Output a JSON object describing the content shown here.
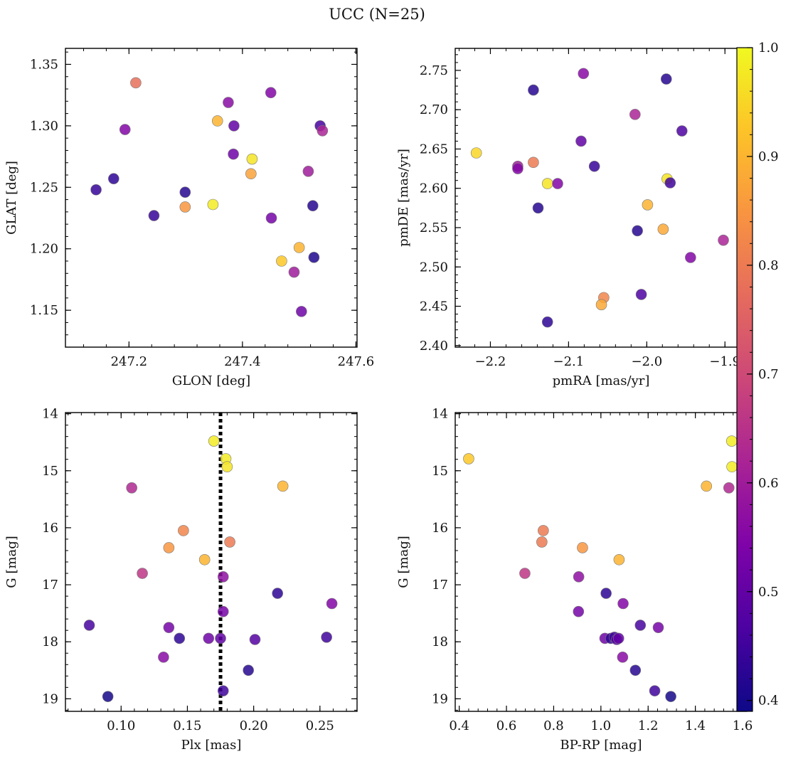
{
  "suptitle": "UCC (N=25)",
  "colorbar": {
    "cmap": "plasma",
    "vmin": 0.39,
    "vmax": 1.0,
    "ticks": [
      0.4,
      0.5,
      0.6,
      0.7,
      0.8,
      0.9,
      1.0
    ],
    "tick_labels": [
      "0.4",
      "0.5",
      "0.6",
      "0.7",
      "0.8",
      "0.9",
      "1.0"
    ]
  },
  "chart_data": [
    {
      "type": "scatter",
      "title": "",
      "xlabel": "GLON [deg]",
      "ylabel": "GLAT [deg]",
      "xlim": [
        247.088,
        247.602
      ],
      "ylim": [
        1.12,
        1.363
      ],
      "y_inverted": false,
      "xticks": [
        247.2,
        247.4,
        247.6
      ],
      "xtick_labels": [
        "247.2",
        "247.4",
        "247.6"
      ],
      "yticks": [
        1.15,
        1.2,
        1.25,
        1.3,
        1.35
      ],
      "ytick_labels": [
        "1.15",
        "1.20",
        "1.25",
        "1.30",
        "1.35"
      ],
      "points": [
        {
          "x": 247.212,
          "y": 1.335,
          "c": 0.78
        },
        {
          "x": 247.375,
          "y": 1.319,
          "c": 0.56
        },
        {
          "x": 247.45,
          "y": 1.327,
          "c": 0.55
        },
        {
          "x": 247.193,
          "y": 1.297,
          "c": 0.55
        },
        {
          "x": 247.356,
          "y": 1.304,
          "c": 0.9
        },
        {
          "x": 247.385,
          "y": 1.3,
          "c": 0.5
        },
        {
          "x": 247.537,
          "y": 1.3,
          "c": 0.46
        },
        {
          "x": 247.541,
          "y": 1.296,
          "c": 0.62
        },
        {
          "x": 247.384,
          "y": 1.277,
          "c": 0.52
        },
        {
          "x": 247.417,
          "y": 1.273,
          "c": 0.97
        },
        {
          "x": 247.415,
          "y": 1.261,
          "c": 0.87
        },
        {
          "x": 247.516,
          "y": 1.263,
          "c": 0.6
        },
        {
          "x": 247.173,
          "y": 1.257,
          "c": 0.43
        },
        {
          "x": 247.142,
          "y": 1.248,
          "c": 0.44
        },
        {
          "x": 247.299,
          "y": 1.246,
          "c": 0.42
        },
        {
          "x": 247.348,
          "y": 1.236,
          "c": 0.98
        },
        {
          "x": 247.299,
          "y": 1.234,
          "c": 0.85
        },
        {
          "x": 247.244,
          "y": 1.227,
          "c": 0.44
        },
        {
          "x": 247.524,
          "y": 1.235,
          "c": 0.42
        },
        {
          "x": 247.451,
          "y": 1.225,
          "c": 0.53
        },
        {
          "x": 247.5,
          "y": 1.201,
          "c": 0.9
        },
        {
          "x": 247.526,
          "y": 1.193,
          "c": 0.41
        },
        {
          "x": 247.469,
          "y": 1.19,
          "c": 0.93
        },
        {
          "x": 247.491,
          "y": 1.181,
          "c": 0.6
        },
        {
          "x": 247.504,
          "y": 1.149,
          "c": 0.52
        }
      ]
    },
    {
      "type": "scatter",
      "title": "",
      "xlabel": "pmRA [mas/yr]",
      "ylabel": "pmDE [mas/yr]",
      "xlim": [
        -2.245,
        -1.872
      ],
      "ylim": [
        2.398,
        2.778
      ],
      "y_inverted": false,
      "xticks": [
        -2.2,
        -2.1,
        -2.0,
        -1.9
      ],
      "xtick_labels": [
        "−2.2",
        "−2.1",
        "−2.0",
        "−1.9"
      ],
      "yticks": [
        2.4,
        2.45,
        2.5,
        2.55,
        2.6,
        2.65,
        2.7,
        2.75
      ],
      "ytick_labels": [
        "2.40",
        "2.45",
        "2.50",
        "2.55",
        "2.60",
        "2.65",
        "2.70",
        "2.75"
      ],
      "points": [
        {
          "x": -2.081,
          "y": 2.746,
          "c": 0.56
        },
        {
          "x": -1.975,
          "y": 2.739,
          "c": 0.42
        },
        {
          "x": -2.145,
          "y": 2.725,
          "c": 0.42
        },
        {
          "x": -2.015,
          "y": 2.694,
          "c": 0.62
        },
        {
          "x": -1.955,
          "y": 2.673,
          "c": 0.47
        },
        {
          "x": -2.084,
          "y": 2.66,
          "c": 0.5
        },
        {
          "x": -2.218,
          "y": 2.645,
          "c": 0.95
        },
        {
          "x": -2.145,
          "y": 2.633,
          "c": 0.8
        },
        {
          "x": -2.165,
          "y": 2.628,
          "c": 0.6
        },
        {
          "x": -2.165,
          "y": 2.625,
          "c": 0.55
        },
        {
          "x": -2.067,
          "y": 2.628,
          "c": 0.44
        },
        {
          "x": -1.974,
          "y": 2.612,
          "c": 0.97
        },
        {
          "x": -1.97,
          "y": 2.607,
          "c": 0.45
        },
        {
          "x": -2.127,
          "y": 2.606,
          "c": 0.97
        },
        {
          "x": -2.114,
          "y": 2.606,
          "c": 0.55
        },
        {
          "x": -1.999,
          "y": 2.579,
          "c": 0.9
        },
        {
          "x": -2.139,
          "y": 2.575,
          "c": 0.42
        },
        {
          "x": -1.979,
          "y": 2.548,
          "c": 0.88
        },
        {
          "x": -2.012,
          "y": 2.546,
          "c": 0.42
        },
        {
          "x": -1.902,
          "y": 2.534,
          "c": 0.62
        },
        {
          "x": -1.944,
          "y": 2.512,
          "c": 0.55
        },
        {
          "x": -2.007,
          "y": 2.465,
          "c": 0.47
        },
        {
          "x": -2.055,
          "y": 2.461,
          "c": 0.82
        },
        {
          "x": -2.058,
          "y": 2.452,
          "c": 0.88
        },
        {
          "x": -2.127,
          "y": 2.43,
          "c": 0.43
        }
      ]
    },
    {
      "type": "scatter",
      "title": "",
      "xlabel": "Plx [mas]",
      "ylabel": "G [mag]",
      "xlim": [
        0.058,
        0.278
      ],
      "ylim": [
        19.22,
        13.98
      ],
      "y_inverted": true,
      "xticks": [
        0.1,
        0.15,
        0.2,
        0.25
      ],
      "xtick_labels": [
        "0.10",
        "0.15",
        "0.20",
        "0.25"
      ],
      "yticks": [
        14,
        15,
        16,
        17,
        18,
        19
      ],
      "ytick_labels": [
        "14",
        "15",
        "16",
        "17",
        "18",
        "19"
      ],
      "vline": {
        "x": 0.175,
        "style": "dotted",
        "color": "#000000"
      },
      "points": [
        {
          "x": 0.17,
          "y": 14.48,
          "c": 0.98
        },
        {
          "x": 0.179,
          "y": 14.79,
          "c": 0.98
        },
        {
          "x": 0.18,
          "y": 14.93,
          "c": 0.97
        },
        {
          "x": 0.222,
          "y": 15.27,
          "c": 0.9
        },
        {
          "x": 0.108,
          "y": 15.3,
          "c": 0.63
        },
        {
          "x": 0.147,
          "y": 16.05,
          "c": 0.82
        },
        {
          "x": 0.182,
          "y": 16.25,
          "c": 0.8
        },
        {
          "x": 0.136,
          "y": 16.35,
          "c": 0.85
        },
        {
          "x": 0.163,
          "y": 16.56,
          "c": 0.9
        },
        {
          "x": 0.116,
          "y": 16.8,
          "c": 0.66
        },
        {
          "x": 0.177,
          "y": 16.86,
          "c": 0.57
        },
        {
          "x": 0.218,
          "y": 17.15,
          "c": 0.43
        },
        {
          "x": 0.259,
          "y": 17.33,
          "c": 0.55
        },
        {
          "x": 0.177,
          "y": 17.47,
          "c": 0.53
        },
        {
          "x": 0.076,
          "y": 17.71,
          "c": 0.46
        },
        {
          "x": 0.136,
          "y": 17.75,
          "c": 0.53
        },
        {
          "x": 0.144,
          "y": 17.94,
          "c": 0.43
        },
        {
          "x": 0.166,
          "y": 17.94,
          "c": 0.52
        },
        {
          "x": 0.175,
          "y": 17.94,
          "c": 0.5
        },
        {
          "x": 0.201,
          "y": 17.96,
          "c": 0.48
        },
        {
          "x": 0.255,
          "y": 17.92,
          "c": 0.45
        },
        {
          "x": 0.132,
          "y": 18.27,
          "c": 0.56
        },
        {
          "x": 0.196,
          "y": 18.5,
          "c": 0.42
        },
        {
          "x": 0.177,
          "y": 18.86,
          "c": 0.45
        },
        {
          "x": 0.09,
          "y": 18.96,
          "c": 0.4
        }
      ]
    },
    {
      "type": "scatter",
      "title": "",
      "xlabel": "BP-RP [mag]",
      "ylabel": "G [mag]",
      "xlim": [
        0.383,
        1.618
      ],
      "ylim": [
        19.22,
        13.98
      ],
      "y_inverted": true,
      "xticks": [
        0.4,
        0.6,
        0.8,
        1.0,
        1.2,
        1.4,
        1.6
      ],
      "xtick_labels": [
        "0.4",
        "0.6",
        "0.8",
        "1.0",
        "1.2",
        "1.4",
        "1.6"
      ],
      "yticks": [
        14,
        15,
        16,
        17,
        18,
        19
      ],
      "ytick_labels": [
        "14",
        "15",
        "16",
        "17",
        "18",
        "19"
      ],
      "points": [
        {
          "x": 0.44,
          "y": 14.79,
          "c": 0.93
        },
        {
          "x": 1.554,
          "y": 14.48,
          "c": 0.98
        },
        {
          "x": 1.555,
          "y": 14.93,
          "c": 0.98
        },
        {
          "x": 1.447,
          "y": 15.27,
          "c": 0.9
        },
        {
          "x": 1.542,
          "y": 15.3,
          "c": 0.63
        },
        {
          "x": 0.756,
          "y": 16.05,
          "c": 0.8
        },
        {
          "x": 0.75,
          "y": 16.25,
          "c": 0.8
        },
        {
          "x": 0.922,
          "y": 16.35,
          "c": 0.85
        },
        {
          "x": 1.077,
          "y": 16.56,
          "c": 0.9
        },
        {
          "x": 0.678,
          "y": 16.8,
          "c": 0.66
        },
        {
          "x": 0.906,
          "y": 16.86,
          "c": 0.57
        },
        {
          "x": 1.022,
          "y": 17.15,
          "c": 0.43
        },
        {
          "x": 1.094,
          "y": 17.33,
          "c": 0.55
        },
        {
          "x": 0.905,
          "y": 17.47,
          "c": 0.53
        },
        {
          "x": 1.167,
          "y": 17.71,
          "c": 0.46
        },
        {
          "x": 1.243,
          "y": 17.75,
          "c": 0.53
        },
        {
          "x": 1.017,
          "y": 17.94,
          "c": 0.52
        },
        {
          "x": 1.042,
          "y": 17.94,
          "c": 0.43
        },
        {
          "x": 1.057,
          "y": 17.92,
          "c": 0.45
        },
        {
          "x": 1.067,
          "y": 17.96,
          "c": 0.48
        },
        {
          "x": 1.075,
          "y": 17.94,
          "c": 0.5
        },
        {
          "x": 1.092,
          "y": 18.27,
          "c": 0.56
        },
        {
          "x": 1.146,
          "y": 18.5,
          "c": 0.42
        },
        {
          "x": 1.228,
          "y": 18.86,
          "c": 0.45
        },
        {
          "x": 1.296,
          "y": 18.96,
          "c": 0.4
        }
      ]
    }
  ]
}
